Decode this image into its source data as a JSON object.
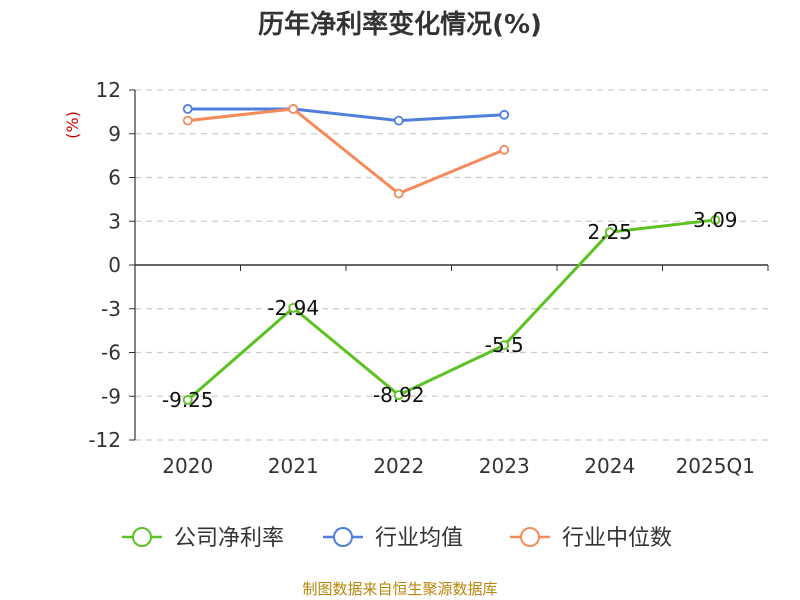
{
  "title": "历年净利率变化情况(%)",
  "source": "制图数据来自恒生聚源数据库",
  "chart_data": {
    "type": "line",
    "title": "历年净利率变化情况(%)",
    "ylabel": "(%)",
    "xlabel": "",
    "categories": [
      "2020",
      "2021",
      "2022",
      "2023",
      "2024",
      "2025Q1"
    ],
    "ylim": [
      -12,
      12
    ],
    "yticks": [
      12,
      9,
      6,
      3,
      0,
      -3,
      -6,
      -9,
      -12
    ],
    "grid": true,
    "legend_position": "bottom",
    "series": [
      {
        "name": "公司净利率",
        "color": "#5cc222",
        "values": [
          -9.25,
          -2.94,
          -8.92,
          -5.5,
          2.25,
          3.09
        ],
        "labels": [
          "-9.25",
          "-2.94",
          "-8.92",
          "-5.5",
          "2.25",
          "3.09"
        ]
      },
      {
        "name": "行业均值",
        "color": "#4f7fdb",
        "values": [
          10.7,
          10.7,
          9.9,
          10.3,
          null,
          null
        ]
      },
      {
        "name": "行业中位数",
        "color": "#f58b5a",
        "values": [
          9.9,
          10.7,
          4.9,
          7.9,
          null,
          null
        ]
      }
    ]
  }
}
